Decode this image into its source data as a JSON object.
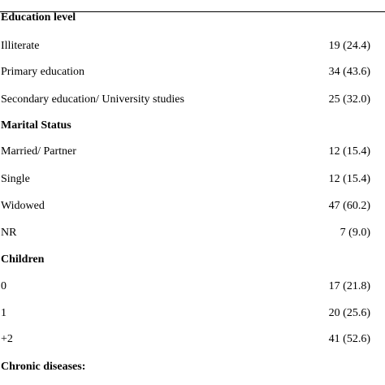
{
  "table": {
    "sections": [
      {
        "heading": "Education level",
        "rows": [
          {
            "label": "Illiterate",
            "value": "19 (24.4)"
          },
          {
            "label": "Primary education",
            "value": "34 (43.6)"
          },
          {
            "label": "Secondary education/ University studies",
            "value": "25 (32.0)"
          }
        ]
      },
      {
        "heading": "Marital Status",
        "rows": [
          {
            "label": "Married/ Partner",
            "value": "12 (15.4)"
          },
          {
            "label": "Single",
            "value": "12 (15.4)"
          },
          {
            "label": "Widowed",
            "value": "47 (60.2)"
          },
          {
            "label": "NR",
            "value": "7 (9.0)"
          }
        ]
      },
      {
        "heading": "Children",
        "rows": [
          {
            "label": "0",
            "value": "17 (21.8)"
          },
          {
            "label": "1",
            "value": "20 (25.6)"
          },
          {
            "label": "+2",
            "value": "41 (52.6)"
          }
        ]
      },
      {
        "heading": "Chronic diseases:",
        "rows": []
      }
    ]
  }
}
